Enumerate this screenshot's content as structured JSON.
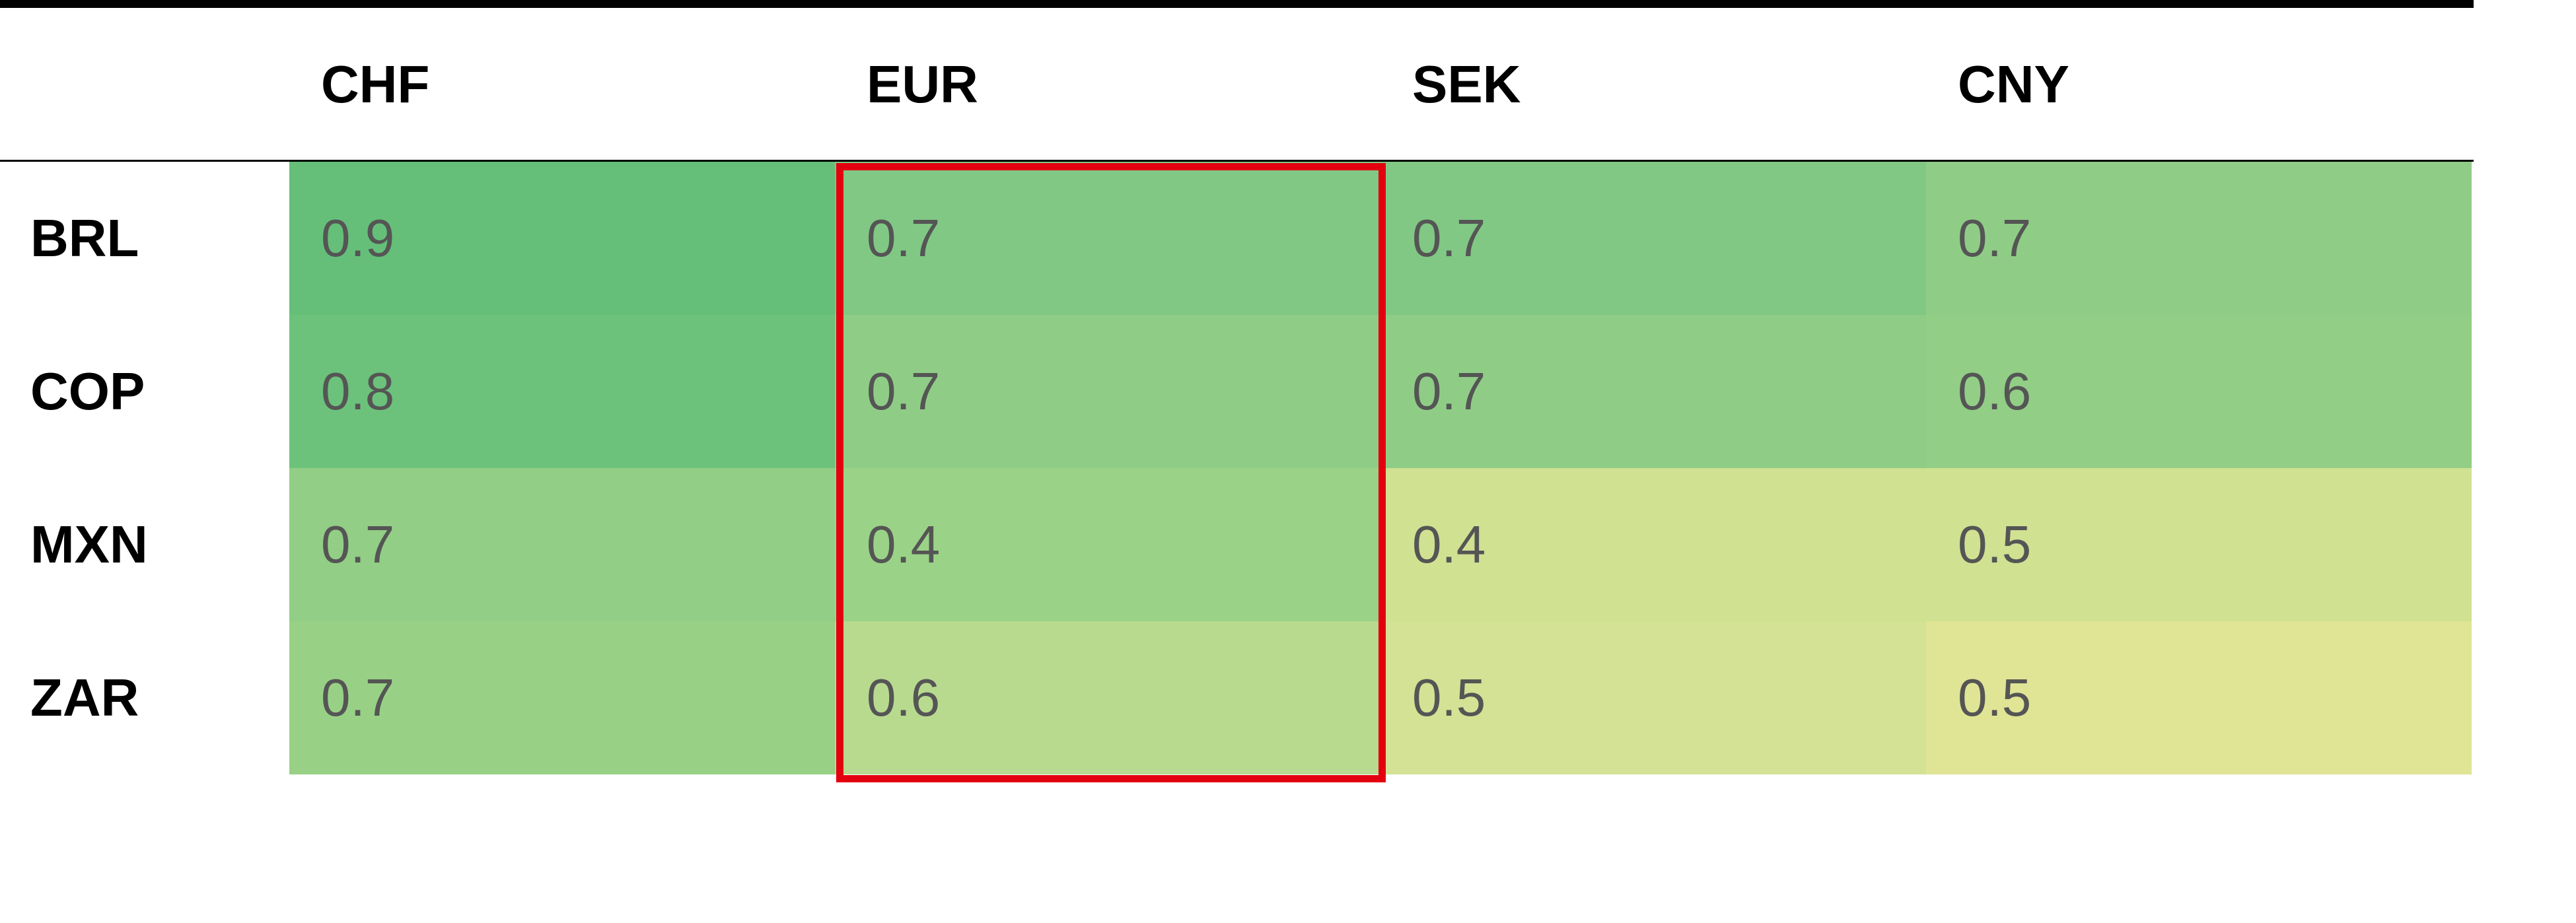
{
  "chart_data": {
    "type": "heatmap",
    "columns": [
      "CHF",
      "EUR",
      "SEK",
      "CNY"
    ],
    "rows": [
      "BRL",
      "COP",
      "MXN",
      "ZAR"
    ],
    "values": [
      [
        "0.9",
        "0.7",
        "0.7",
        "0.7"
      ],
      [
        "0.8",
        "0.7",
        "0.7",
        "0.6"
      ],
      [
        "0.7",
        "0.4",
        "0.4",
        "0.5"
      ],
      [
        "0.7",
        "0.6",
        "0.5",
        "0.5"
      ]
    ],
    "cell_colors": [
      [
        "#65bf79",
        "#81c885",
        "#81c885",
        "#8fcd86"
      ],
      [
        "#6cc27b",
        "#8fcd86",
        "#8fcd86",
        "#92ce86"
      ],
      [
        "#92ce86",
        "#9ad387",
        "#d0e192",
        "#d0e192"
      ],
      [
        "#98d186",
        "#b8da8f",
        "#d3e294",
        "#dfe594"
      ]
    ],
    "highlight": {
      "column": "EUR",
      "color": "#e3000f"
    }
  }
}
